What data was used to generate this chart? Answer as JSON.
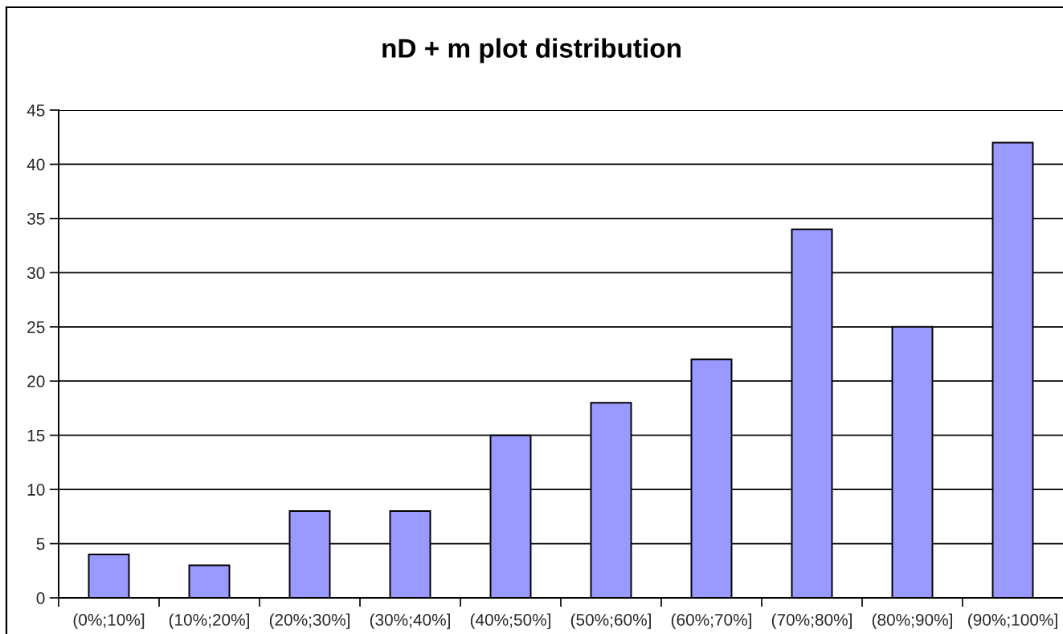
{
  "chart_data": {
    "type": "bar",
    "title": "nD + m plot distribution",
    "categories": [
      "(0%;10%]",
      "(10%;20%]",
      "(20%;30%]",
      "(30%;40%]",
      "(40%;50%]",
      "(50%;60%]",
      "(60%;70%]",
      "(70%;80%]",
      "(80%;90%]",
      "(90%;100%]"
    ],
    "values": [
      4,
      3,
      8,
      8,
      15,
      18,
      22,
      34,
      25,
      42
    ],
    "color": "#9999ff",
    "ylim": [
      0,
      45
    ],
    "yticks": [
      0,
      5,
      10,
      15,
      20,
      25,
      30,
      35,
      40,
      45
    ],
    "grid": "y"
  }
}
